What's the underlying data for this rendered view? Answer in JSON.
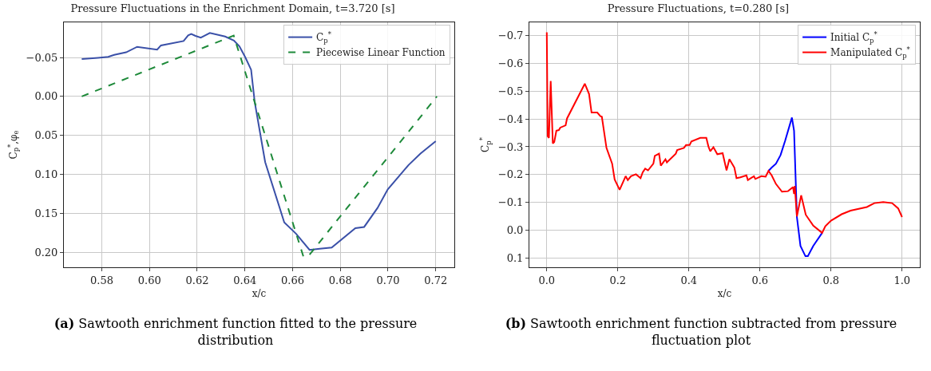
{
  "chart_data": [
    {
      "type": "line",
      "title": "Pressure Fluctuations in the Enrichment Domain, t=3.720 [s]",
      "xlabel": "x/c",
      "ylabel": "C$_{p}$$^{*}$,φ$_{e}$",
      "grid": true,
      "legend": "top right",
      "xlim": [
        0.5641,
        0.7278
      ],
      "ylim": [
        0.219,
        -0.095
      ],
      "xticks": [
        {
          "value": 0.58,
          "label": "0.58"
        },
        {
          "value": 0.6,
          "label": "0.60"
        },
        {
          "value": 0.62,
          "label": "0.62"
        },
        {
          "value": 0.64,
          "label": "0.64"
        },
        {
          "value": 0.66,
          "label": "0.66"
        },
        {
          "value": 0.68,
          "label": "0.68"
        },
        {
          "value": 0.7,
          "label": "0.70"
        },
        {
          "value": 0.72,
          "label": "0.72"
        }
      ],
      "yticks": [
        {
          "value": -0.05,
          "label": "−0.05"
        },
        {
          "value": 0,
          "label": "0.00"
        },
        {
          "value": 0.05,
          "label": "0.05"
        },
        {
          "value": 0.1,
          "label": "0.10"
        },
        {
          "value": 0.15,
          "label": "0.15"
        },
        {
          "value": 0.2,
          "label": "0.20"
        }
      ],
      "series": [
        {
          "name": "C$_{p}$$^{*}$",
          "color": "#3a50a8",
          "line_style": "solid",
          "x": [
            0.5716,
            0.5784,
            0.5827,
            0.5852,
            0.5902,
            0.5948,
            0.6032,
            0.6048,
            0.6143,
            0.6162,
            0.6175,
            0.6193,
            0.6215,
            0.6253,
            0.6317,
            0.6354,
            0.6377,
            0.6402,
            0.6426,
            0.6441,
            0.6485,
            0.6565,
            0.6615,
            0.6671,
            0.6714,
            0.6764,
            0.6863,
            0.69,
            0.6956,
            0.6999,
            0.7086,
            0.7136,
            0.72
          ],
          "values": [
            -0.048,
            -0.0496,
            -0.0507,
            -0.0533,
            -0.0566,
            -0.0636,
            -0.06,
            -0.0654,
            -0.071,
            -0.0783,
            -0.08,
            -0.0776,
            -0.0754,
            -0.0813,
            -0.0768,
            -0.0717,
            -0.0643,
            -0.05,
            -0.0342,
            0.007,
            0.0842,
            0.1614,
            0.1761,
            0.1967,
            0.1952,
            0.1938,
            0.1688,
            0.1673,
            0.143,
            0.1191,
            0.0879,
            0.0732,
            0.0574
          ]
        },
        {
          "name": "Piecewise Linear Function",
          "color": "#1e8a3a",
          "line_style": "dashed",
          "x": [
            0.5716,
            0.6353,
            0.6645,
            0.6665,
            0.7205
          ],
          "values": [
            0,
            -0.078,
            0.205,
            0.205,
            0
          ]
        }
      ],
      "annotations": [
        "(a) Sawtooth enrichment function fitted to the pressure distribution"
      ]
    },
    {
      "type": "line",
      "title": "Pressure Fluctuations, t=0.280 [s]",
      "xlabel": "x/c",
      "ylabel": "C$_{p}$$^{*}$",
      "grid": true,
      "legend": "top right",
      "xlim": [
        -0.049,
        1.05
      ],
      "ylim": [
        0.134,
        -0.748
      ],
      "xticks": [
        {
          "value": 0,
          "label": "0.0"
        },
        0.2,
        0.4,
        0.6,
        0.8,
        {
          "value": 1,
          "label": "1.0"
        }
      ],
      "yticks": [
        {
          "value": -0.7,
          "label": "−0.7"
        },
        {
          "value": -0.6,
          "label": "−0.6"
        },
        {
          "value": -0.5,
          "label": "−0.5"
        },
        {
          "value": -0.4,
          "label": "−0.4"
        },
        {
          "value": -0.3,
          "label": "−0.3"
        },
        {
          "value": -0.2,
          "label": "−0.2"
        },
        {
          "value": -0.1,
          "label": "−0.1"
        },
        {
          "value": 0,
          "label": "0.0"
        },
        0.1
      ],
      "series": [
        {
          "name": "Initial C$_{p}$$^{*}$",
          "color": "#0000ff",
          "line_style": "solid",
          "x": [
            0.624,
            0.633,
            0.645,
            0.658,
            0.671,
            0.69,
            0.696,
            0.704,
            0.714,
            0.728,
            0.735,
            0.75,
            0.775
          ],
          "values": [
            -0.213,
            -0.225,
            -0.239,
            -0.27,
            -0.322,
            -0.405,
            -0.358,
            -0.047,
            0.057,
            0.094,
            0.094,
            0.057,
            0.01
          ]
        },
        {
          "name": "Manipulated C$_{p}$$^{*}$",
          "color": "#ff0000",
          "line_style": "solid",
          "x": [
            0,
            0.0025,
            0.006,
            0.011,
            0.017,
            0.021,
            0.027,
            0.034,
            0.038,
            0.053,
            0.057,
            0.107,
            0.119,
            0.126,
            0.142,
            0.151,
            0.155,
            0.168,
            0.184,
            0.191,
            0.205,
            0.222,
            0.228,
            0.237,
            0.251,
            0.264,
            0.27,
            0.277,
            0.285,
            0.3,
            0.304,
            0.316,
            0.321,
            0.334,
            0.338,
            0.363,
            0.367,
            0.386,
            0.392,
            0.402,
            0.407,
            0.432,
            0.449,
            0.455,
            0.46,
            0.469,
            0.48,
            0.495,
            0.506,
            0.514,
            0.528,
            0.534,
            0.545,
            0.562,
            0.566,
            0.583,
            0.587,
            0.604,
            0.616,
            0.624,
            0.633,
            0.645,
            0.662,
            0.679,
            0.693,
            0.696,
            0.698,
            0.704,
            0.716,
            0.729,
            0.75,
            0.775,
            0.784,
            0.8,
            0.83,
            0.855,
            0.901,
            0.922,
            0.947,
            0.972,
            0.989,
            1.0
          ],
          "values": [
            -0.712,
            -0.338,
            -0.332,
            -0.537,
            -0.312,
            -0.317,
            -0.358,
            -0.36,
            -0.369,
            -0.377,
            -0.402,
            -0.527,
            -0.49,
            -0.423,
            -0.423,
            -0.41,
            -0.408,
            -0.296,
            -0.239,
            -0.182,
            -0.145,
            -0.194,
            -0.18,
            -0.194,
            -0.201,
            -0.187,
            -0.208,
            -0.221,
            -0.215,
            -0.239,
            -0.267,
            -0.275,
            -0.232,
            -0.255,
            -0.244,
            -0.275,
            -0.288,
            -0.296,
            -0.306,
            -0.306,
            -0.319,
            -0.332,
            -0.332,
            -0.301,
            -0.284,
            -0.298,
            -0.273,
            -0.277,
            -0.215,
            -0.255,
            -0.225,
            -0.187,
            -0.19,
            -0.197,
            -0.18,
            -0.194,
            -0.184,
            -0.194,
            -0.192,
            -0.213,
            -0.197,
            -0.166,
            -0.138,
            -0.14,
            -0.155,
            -0.13,
            -0.159,
            -0.049,
            -0.125,
            -0.055,
            -0.016,
            0.01,
            -0.014,
            -0.034,
            -0.057,
            -0.07,
            -0.083,
            -0.097,
            -0.101,
            -0.097,
            -0.078,
            -0.047
          ]
        }
      ],
      "annotations": [
        "(b) Sawtooth enrichment function subtracted from pressure fluctuation plot"
      ]
    }
  ]
}
